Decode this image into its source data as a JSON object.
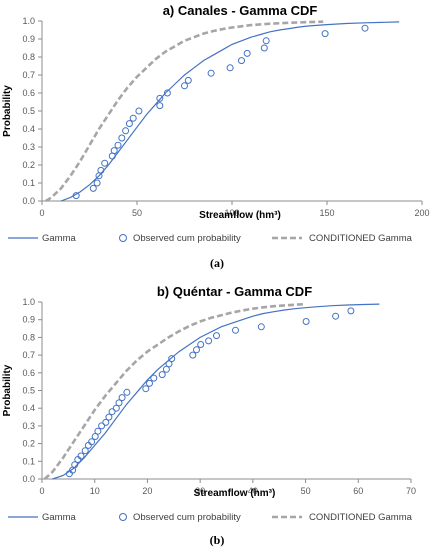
{
  "chart_data": [
    {
      "type": "line",
      "title": "a) Canales - Gamma CDF",
      "xlabel": "Streamflow (hm³)",
      "ylabel": "Probability",
      "xlim": [
        0,
        200
      ],
      "ylim": [
        0,
        1
      ],
      "xticks": [
        0,
        50,
        100,
        150,
        200
      ],
      "yticks": [
        0,
        0.1,
        0.2,
        0.3,
        0.4,
        0.5,
        0.6,
        0.7,
        0.8,
        0.9,
        1.0
      ],
      "xtick_labels": [
        "0",
        "50",
        "100",
        "150",
        "200"
      ],
      "ytick_labels": [
        "0.0",
        "0.1",
        "0.2",
        "0.3",
        "0.4",
        "0.5",
        "0.6",
        "0.7",
        "0.8",
        "0.9",
        "1.0"
      ],
      "grid": false,
      "legend_position": "bottom",
      "caption": "(a)",
      "series": [
        {
          "name": "Gamma",
          "style": "solid line",
          "color": "#4472C4",
          "x": [
            10,
            15,
            20,
            25,
            30,
            35,
            40,
            45,
            50,
            55,
            60,
            65,
            70,
            75,
            80,
            85,
            90,
            95,
            100,
            105,
            110,
            115,
            120,
            125,
            130,
            135,
            140,
            150,
            160,
            170,
            180,
            188
          ],
          "y": [
            0.0,
            0.02,
            0.05,
            0.09,
            0.14,
            0.2,
            0.27,
            0.34,
            0.41,
            0.48,
            0.54,
            0.6,
            0.65,
            0.7,
            0.74,
            0.78,
            0.81,
            0.84,
            0.87,
            0.89,
            0.91,
            0.925,
            0.94,
            0.95,
            0.958,
            0.966,
            0.972,
            0.98,
            0.986,
            0.99,
            0.993,
            0.995
          ]
        },
        {
          "name": "Observed cum probability",
          "style": "open circles",
          "color": "#4472C4",
          "x": [
            18,
            27,
            29,
            30,
            31,
            33,
            37,
            38,
            40,
            42,
            44,
            46,
            48,
            51,
            62,
            62,
            66,
            75,
            77,
            89,
            99,
            105,
            108,
            117,
            118,
            149,
            170
          ],
          "y": [
            0.03,
            0.07,
            0.1,
            0.14,
            0.17,
            0.21,
            0.25,
            0.28,
            0.31,
            0.35,
            0.39,
            0.43,
            0.46,
            0.5,
            0.53,
            0.57,
            0.6,
            0.64,
            0.67,
            0.71,
            0.74,
            0.78,
            0.82,
            0.85,
            0.89,
            0.93,
            0.96
          ]
        },
        {
          "name": "CONDITIONED Gamma",
          "style": "dashed line",
          "color": "#A6A6A6",
          "x": [
            2,
            5,
            10,
            15,
            20,
            25,
            30,
            35,
            40,
            45,
            50,
            55,
            60,
            65,
            70,
            75,
            80,
            85,
            90,
            95,
            100,
            110,
            120,
            130,
            140,
            148
          ],
          "y": [
            0.0,
            0.02,
            0.07,
            0.14,
            0.22,
            0.31,
            0.4,
            0.48,
            0.56,
            0.63,
            0.69,
            0.74,
            0.79,
            0.83,
            0.86,
            0.89,
            0.91,
            0.93,
            0.944,
            0.955,
            0.964,
            0.977,
            0.985,
            0.99,
            0.994,
            0.996
          ]
        }
      ]
    },
    {
      "type": "line",
      "title": "b) Quéntar - Gamma CDF",
      "xlabel": "Streamflow (hm³)",
      "ylabel": "Probability",
      "xlim": [
        0,
        70
      ],
      "ylim": [
        0,
        1
      ],
      "xticks": [
        0,
        10,
        20,
        30,
        40,
        50,
        60,
        70
      ],
      "yticks": [
        0,
        0.1,
        0.2,
        0.3,
        0.4,
        0.5,
        0.6,
        0.7,
        0.8,
        0.9,
        1.0
      ],
      "xtick_labels": [
        "0",
        "10",
        "20",
        "30",
        "40",
        "50",
        "60",
        "70"
      ],
      "ytick_labels": [
        "0.0",
        "0.1",
        "0.2",
        "0.3",
        "0.4",
        "0.5",
        "0.6",
        "0.7",
        "0.8",
        "0.9",
        "1.0"
      ],
      "grid": false,
      "legend_position": "bottom",
      "caption": "(b)",
      "series": [
        {
          "name": "Gamma",
          "style": "solid line",
          "color": "#4472C4",
          "x": [
            2,
            4,
            6,
            8,
            10,
            12,
            14,
            16,
            18,
            20,
            22,
            24,
            26,
            28,
            30,
            32,
            34,
            36,
            38,
            40,
            42,
            44,
            46,
            48,
            50,
            52,
            55,
            58,
            61,
            64
          ],
          "y": [
            0.0,
            0.02,
            0.06,
            0.12,
            0.19,
            0.26,
            0.34,
            0.42,
            0.49,
            0.56,
            0.62,
            0.67,
            0.72,
            0.76,
            0.8,
            0.83,
            0.86,
            0.88,
            0.9,
            0.92,
            0.935,
            0.945,
            0.955,
            0.962,
            0.968,
            0.973,
            0.979,
            0.983,
            0.986,
            0.988
          ]
        },
        {
          "name": "Observed cum probability",
          "style": "open circles",
          "color": "#4472C4",
          "x": [
            5.2,
            5.8,
            6.2,
            6.8,
            7.4,
            8.2,
            8.8,
            9.4,
            10.1,
            10.6,
            11.3,
            12.1,
            12.7,
            13.3,
            14.1,
            14.6,
            15.2,
            16.1,
            19.7,
            20.4,
            21.2,
            22.8,
            23.6,
            24.1,
            24.6,
            28.6,
            29.3,
            30.1,
            31.6,
            33.1,
            36.7,
            41.6,
            50.1,
            55.7,
            58.6
          ],
          "y": [
            0.03,
            0.05,
            0.08,
            0.11,
            0.13,
            0.16,
            0.19,
            0.21,
            0.24,
            0.27,
            0.3,
            0.32,
            0.35,
            0.38,
            0.4,
            0.43,
            0.46,
            0.49,
            0.51,
            0.54,
            0.57,
            0.59,
            0.62,
            0.65,
            0.68,
            0.7,
            0.73,
            0.76,
            0.78,
            0.81,
            0.84,
            0.86,
            0.89,
            0.92,
            0.95
          ]
        },
        {
          "name": "CONDITIONED Gamma",
          "style": "dashed line",
          "color": "#A6A6A6",
          "x": [
            0.5,
            2,
            4,
            6,
            8,
            10,
            12,
            14,
            16,
            18,
            20,
            22,
            24,
            26,
            28,
            30,
            32,
            34,
            36,
            38,
            40,
            42,
            44,
            46,
            48,
            50
          ],
          "y": [
            0.0,
            0.04,
            0.12,
            0.21,
            0.3,
            0.39,
            0.47,
            0.54,
            0.61,
            0.67,
            0.72,
            0.76,
            0.8,
            0.835,
            0.865,
            0.89,
            0.91,
            0.925,
            0.94,
            0.952,
            0.962,
            0.97,
            0.976,
            0.981,
            0.985,
            0.988
          ]
        }
      ]
    }
  ]
}
